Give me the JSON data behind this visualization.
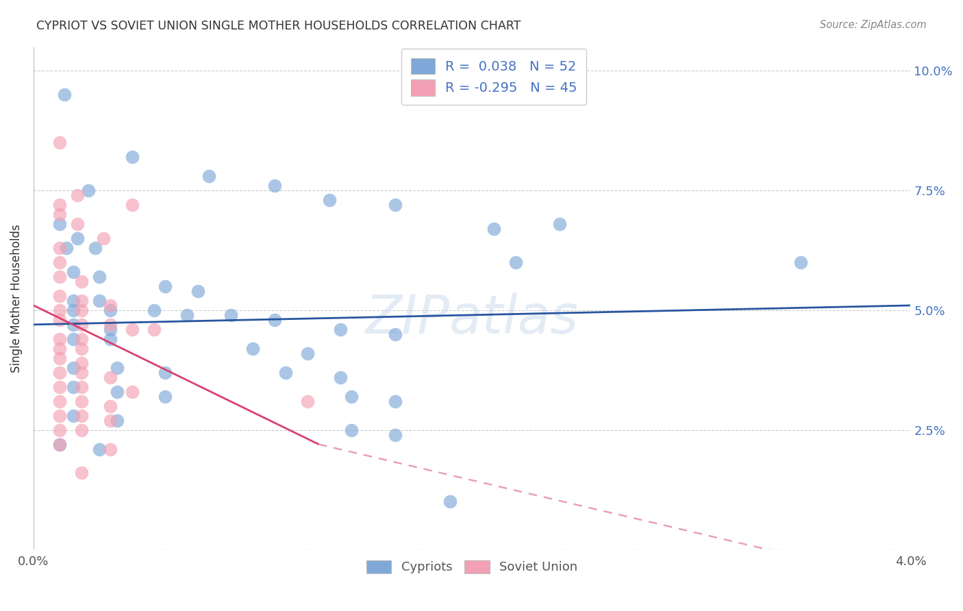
{
  "title": "CYPRIOT VS SOVIET UNION SINGLE MOTHER HOUSEHOLDS CORRELATION CHART",
  "source": "Source: ZipAtlas.com",
  "ylabel": "Single Mother Households",
  "xlim": [
    0.0,
    0.04
  ],
  "ylim": [
    0.0,
    0.105
  ],
  "yticks": [
    0.0,
    0.025,
    0.05,
    0.075,
    0.1
  ],
  "ytick_labels": [
    "",
    "2.5%",
    "5.0%",
    "7.5%",
    "10.0%"
  ],
  "xticks": [
    0.0,
    0.01,
    0.02,
    0.03,
    0.04
  ],
  "xtick_labels": [
    "0.0%",
    "",
    "",
    "",
    "4.0%"
  ],
  "cypriot_color": "#7FA8D8",
  "soviet_color": "#F4A0B4",
  "trend_cypriot_color": "#2855A0",
  "trend_soviet_color": "#D94070",
  "trend_soviet_dashed_color": "#E8A0B8",
  "watermark": "ZIPatlas",
  "legend_label1": "R =  0.038   N = 52",
  "legend_label2": "R = -0.295   N = 45",
  "cypriot_points": [
    [
      0.0014,
      0.095
    ],
    [
      0.0045,
      0.082
    ],
    [
      0.008,
      0.078
    ],
    [
      0.011,
      0.076
    ],
    [
      0.0025,
      0.075
    ],
    [
      0.0135,
      0.073
    ],
    [
      0.0165,
      0.072
    ],
    [
      0.024,
      0.068
    ],
    [
      0.021,
      0.067
    ],
    [
      0.0012,
      0.068
    ],
    [
      0.002,
      0.065
    ],
    [
      0.022,
      0.06
    ],
    [
      0.035,
      0.06
    ],
    [
      0.0015,
      0.063
    ],
    [
      0.0028,
      0.063
    ],
    [
      0.0018,
      0.058
    ],
    [
      0.003,
      0.057
    ],
    [
      0.006,
      0.055
    ],
    [
      0.0075,
      0.054
    ],
    [
      0.0018,
      0.052
    ],
    [
      0.003,
      0.052
    ],
    [
      0.0018,
      0.05
    ],
    [
      0.0035,
      0.05
    ],
    [
      0.0055,
      0.05
    ],
    [
      0.007,
      0.049
    ],
    [
      0.009,
      0.049
    ],
    [
      0.011,
      0.048
    ],
    [
      0.0018,
      0.047
    ],
    [
      0.0035,
      0.046
    ],
    [
      0.014,
      0.046
    ],
    [
      0.0165,
      0.045
    ],
    [
      0.0018,
      0.044
    ],
    [
      0.0035,
      0.044
    ],
    [
      0.01,
      0.042
    ],
    [
      0.0125,
      0.041
    ],
    [
      0.0018,
      0.038
    ],
    [
      0.0038,
      0.038
    ],
    [
      0.006,
      0.037
    ],
    [
      0.0115,
      0.037
    ],
    [
      0.014,
      0.036
    ],
    [
      0.0018,
      0.034
    ],
    [
      0.0038,
      0.033
    ],
    [
      0.006,
      0.032
    ],
    [
      0.0145,
      0.032
    ],
    [
      0.0165,
      0.031
    ],
    [
      0.0018,
      0.028
    ],
    [
      0.0038,
      0.027
    ],
    [
      0.0145,
      0.025
    ],
    [
      0.0165,
      0.024
    ],
    [
      0.0012,
      0.022
    ],
    [
      0.003,
      0.021
    ],
    [
      0.019,
      0.01
    ]
  ],
  "soviet_points": [
    [
      0.0012,
      0.085
    ],
    [
      0.002,
      0.074
    ],
    [
      0.0012,
      0.072
    ],
    [
      0.0012,
      0.07
    ],
    [
      0.0045,
      0.072
    ],
    [
      0.002,
      0.068
    ],
    [
      0.0032,
      0.065
    ],
    [
      0.0012,
      0.063
    ],
    [
      0.0012,
      0.06
    ],
    [
      0.0012,
      0.057
    ],
    [
      0.0022,
      0.056
    ],
    [
      0.0012,
      0.053
    ],
    [
      0.0022,
      0.052
    ],
    [
      0.0035,
      0.051
    ],
    [
      0.0012,
      0.05
    ],
    [
      0.0022,
      0.05
    ],
    [
      0.0012,
      0.048
    ],
    [
      0.0022,
      0.047
    ],
    [
      0.0035,
      0.047
    ],
    [
      0.0045,
      0.046
    ],
    [
      0.0055,
      0.046
    ],
    [
      0.0012,
      0.044
    ],
    [
      0.0022,
      0.044
    ],
    [
      0.0012,
      0.042
    ],
    [
      0.0022,
      0.042
    ],
    [
      0.0012,
      0.04
    ],
    [
      0.0022,
      0.039
    ],
    [
      0.0012,
      0.037
    ],
    [
      0.0022,
      0.037
    ],
    [
      0.0035,
      0.036
    ],
    [
      0.0012,
      0.034
    ],
    [
      0.0022,
      0.034
    ],
    [
      0.0045,
      0.033
    ],
    [
      0.0012,
      0.031
    ],
    [
      0.0022,
      0.031
    ],
    [
      0.0035,
      0.03
    ],
    [
      0.0125,
      0.031
    ],
    [
      0.0012,
      0.028
    ],
    [
      0.0022,
      0.028
    ],
    [
      0.0035,
      0.027
    ],
    [
      0.0012,
      0.025
    ],
    [
      0.0022,
      0.025
    ],
    [
      0.0012,
      0.022
    ],
    [
      0.0035,
      0.021
    ],
    [
      0.0022,
      0.016
    ]
  ],
  "cypriot_trend": [
    0.0,
    0.04,
    0.047,
    0.051
  ],
  "soviet_trend_solid": [
    0.0,
    0.013,
    0.051,
    0.022
  ],
  "soviet_trend_dashed": [
    0.013,
    0.04,
    0.022,
    -0.007
  ]
}
